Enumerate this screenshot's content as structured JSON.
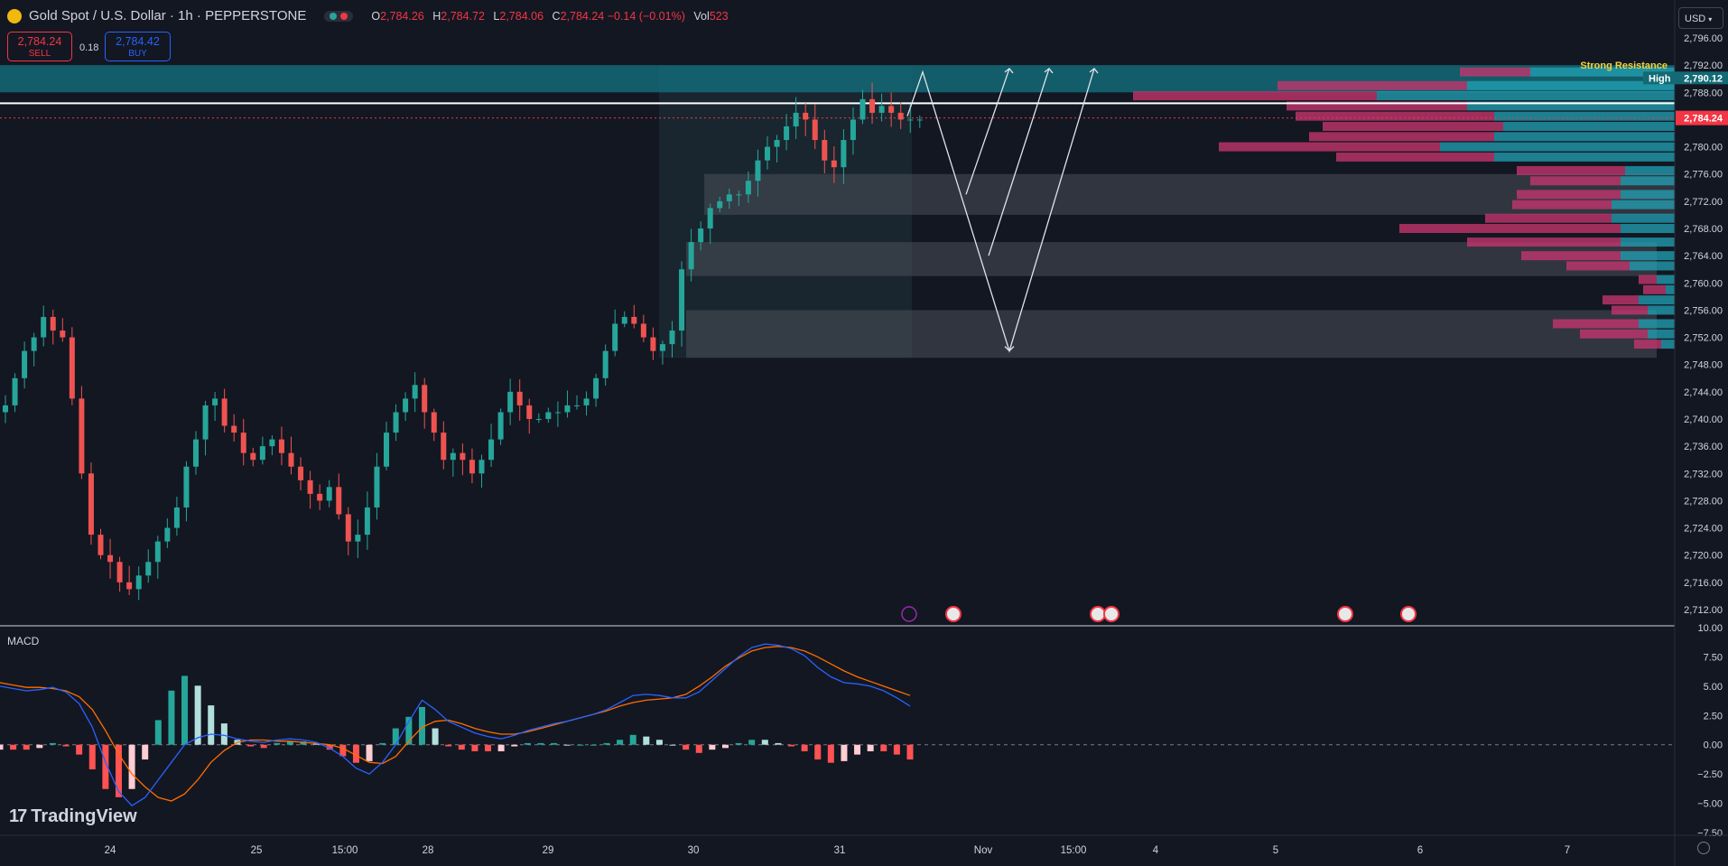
{
  "header": {
    "symbol": "Gold Spot / U.S. Dollar · 1h · PEPPERSTONE",
    "ohlc": [
      {
        "key": "O",
        "value": "2,784.26"
      },
      {
        "key": "H",
        "value": "2,784.72"
      },
      {
        "key": "L",
        "value": "2,784.06"
      },
      {
        "key": "C",
        "value": "2,784.24 −0.14 (−0.01%)"
      }
    ],
    "vol_label": "Vol",
    "vol_value": "523"
  },
  "trade": {
    "sell_price": "2,784.24",
    "sell_label": "SELL",
    "spread": "0.18",
    "buy_price": "2,784.42",
    "buy_label": "BUY"
  },
  "currency": "USD",
  "colors": {
    "background": "#131722",
    "up": "#26a69a",
    "down": "#ef5350",
    "resistance_zone": "#136a75",
    "macd_line": "#2962ff",
    "signal_line": "#ff6d00",
    "label_yellow": "#f6d23b"
  },
  "annotations": {
    "strong_resistance": "Strong Resistance",
    "high_label": "High",
    "high_price": "2,790.12",
    "last_price": "2,784.24"
  },
  "macd_label": "MACD",
  "watermark": "TradingView",
  "chart_data": [
    {
      "type": "candlestick",
      "title": "Gold Spot / U.S. Dollar · 1h · PEPPERSTONE",
      "ylim": [
        2712,
        2796
      ],
      "y_ticks": [
        "2,796.00",
        "2,792.00",
        "2,788.00",
        "2,784.00",
        "2,780.00",
        "2,776.00",
        "2,772.00",
        "2,768.00",
        "2,764.00",
        "2,760.00",
        "2,756.00",
        "2,752.00",
        "2,748.00",
        "2,744.00",
        "2,740.00",
        "2,736.00",
        "2,732.00",
        "2,728.00",
        "2,724.00",
        "2,720.00",
        "2,716.00",
        "2,712.00"
      ],
      "x_ticks": [
        "24",
        "25",
        "15:00",
        "28",
        "29",
        "30",
        "31",
        "Nov",
        "15:00",
        "4",
        "5",
        "6",
        "7"
      ],
      "close_path": [
        2742,
        2746,
        2750,
        2752,
        2755,
        2753,
        2752,
        2743,
        2732,
        2723,
        2720,
        2719,
        2716,
        2715,
        2717,
        2719,
        2722,
        2724,
        2727,
        2733,
        2737,
        2742,
        2743,
        2739,
        2738,
        2735,
        2734,
        2736,
        2737,
        2735,
        2733,
        2731,
        2729,
        2728,
        2730,
        2726,
        2722,
        2723,
        2727,
        2733,
        2738,
        2741,
        2743,
        2745,
        2741,
        2738,
        2734,
        2735,
        2734,
        2732,
        2734,
        2737,
        2741,
        2744,
        2742,
        2740,
        2740,
        2741,
        2741,
        2742,
        2742,
        2743,
        2746,
        2750,
        2754,
        2755,
        2754,
        2752,
        2750,
        2751,
        2753,
        2762,
        2766,
        2768,
        2771,
        2772,
        2773,
        2773,
        2775,
        2778,
        2780,
        2781,
        2783,
        2785,
        2784,
        2781,
        2778,
        2777,
        2781,
        2784,
        2787,
        2785,
        2786,
        2785,
        2784,
        2784,
        2784
      ],
      "sr_zones": [
        [
          2788,
          2792
        ],
        [
          2770,
          2776
        ],
        [
          2761,
          2766
        ],
        [
          2749,
          2756
        ]
      ],
      "projection": [
        2784.5,
        2791,
        2773,
        2791.5,
        2764,
        2791.5,
        2750,
        2791.5
      ],
      "events": [
        "flash",
        "us",
        "us",
        "us",
        "us",
        "us"
      ]
    },
    {
      "type": "bar",
      "title": "MACD",
      "ylim": [
        -7.5,
        10
      ],
      "y_ticks": [
        "10.00",
        "7.50",
        "5.00",
        "2.50",
        "0.00",
        "−2.50",
        "−5.00",
        "−7.50"
      ],
      "macd": [
        5.0,
        4.8,
        4.6,
        4.7,
        4.9,
        4.5,
        3.5,
        1.5,
        -1.5,
        -4.0,
        -5.2,
        -4.5,
        -3.0,
        -1.5,
        0.0,
        0.6,
        0.9,
        0.8,
        0.5,
        0.3,
        0.2,
        0.4,
        0.5,
        0.4,
        0.2,
        -0.3,
        -1.0,
        -2.0,
        -2.5,
        -1.5,
        0.0,
        2.0,
        3.8,
        3.0,
        2.0,
        1.5,
        1.0,
        0.7,
        0.5,
        0.8,
        1.2,
        1.5,
        1.8,
        2.0,
        2.3,
        2.6,
        3.0,
        3.6,
        4.2,
        4.3,
        4.2,
        4.0,
        4.0,
        4.5,
        5.5,
        6.5,
        7.5,
        8.3,
        8.6,
        8.5,
        8.2,
        7.6,
        6.6,
        5.8,
        5.3,
        5.2,
        5.0,
        4.6,
        4.0,
        3.3
      ],
      "signal": [
        5.3,
        5.1,
        4.9,
        4.9,
        4.8,
        4.6,
        4.1,
        3.0,
        1.2,
        -0.8,
        -2.5,
        -3.6,
        -4.5,
        -4.8,
        -4.2,
        -3.0,
        -1.5,
        -0.5,
        0.2,
        0.4,
        0.4,
        0.3,
        0.3,
        0.2,
        0.1,
        0.0,
        -0.3,
        -0.9,
        -1.5,
        -1.6,
        -1.0,
        0.3,
        1.5,
        2.0,
        2.1,
        1.8,
        1.4,
        1.1,
        0.9,
        0.9,
        1.1,
        1.4,
        1.7,
        2.0,
        2.3,
        2.6,
        2.9,
        3.3,
        3.6,
        3.8,
        3.9,
        4.0,
        4.3,
        5.0,
        5.8,
        6.7,
        7.4,
        8.0,
        8.3,
        8.4,
        8.3,
        8.0,
        7.5,
        6.9,
        6.3,
        5.8,
        5.4,
        5.0,
        4.6,
        4.2
      ]
    }
  ]
}
